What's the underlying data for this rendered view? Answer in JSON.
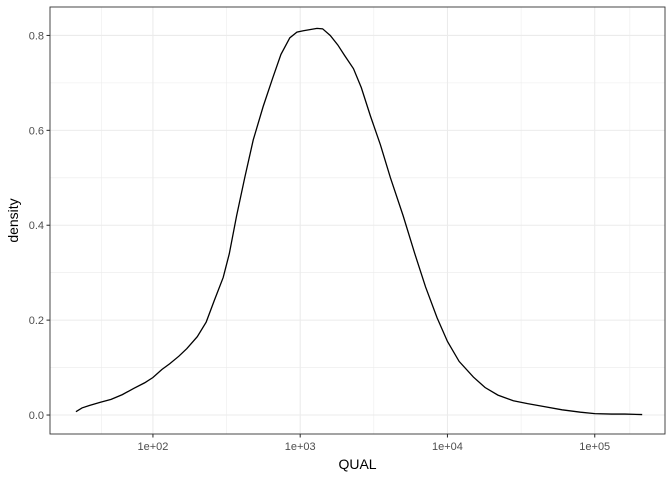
{
  "chart_data": {
    "type": "area",
    "title": "",
    "xlabel": "QUAL",
    "ylabel": "density",
    "x_scale": "log10",
    "xlim": [
      20,
      300000
    ],
    "ylim": [
      -0.04,
      0.86
    ],
    "x_ticks": [
      {
        "value": 100,
        "label": "1e+02"
      },
      {
        "value": 1000,
        "label": "1e+03"
      },
      {
        "value": 10000,
        "label": "1e+04"
      },
      {
        "value": 100000,
        "label": "1e+05"
      }
    ],
    "y_ticks": [
      {
        "value": 0.0,
        "label": "0.0"
      },
      {
        "value": 0.2,
        "label": "0.2"
      },
      {
        "value": 0.4,
        "label": "0.4"
      },
      {
        "value": 0.6,
        "label": "0.6"
      },
      {
        "value": 0.8,
        "label": "0.8"
      }
    ],
    "grid": true,
    "line_color": "#000000",
    "grid_color": "#ebebeb",
    "series": [
      {
        "points": [
          [
            30,
            0.007
          ],
          [
            33,
            0.015
          ],
          [
            37,
            0.02
          ],
          [
            44,
            0.027
          ],
          [
            52,
            0.033
          ],
          [
            62,
            0.043
          ],
          [
            74,
            0.056
          ],
          [
            88,
            0.068
          ],
          [
            100,
            0.079
          ],
          [
            115,
            0.096
          ],
          [
            130,
            0.108
          ],
          [
            150,
            0.124
          ],
          [
            170,
            0.14
          ],
          [
            200,
            0.165
          ],
          [
            230,
            0.196
          ],
          [
            260,
            0.24
          ],
          [
            300,
            0.29
          ],
          [
            330,
            0.34
          ],
          [
            370,
            0.42
          ],
          [
            420,
            0.5
          ],
          [
            480,
            0.58
          ],
          [
            560,
            0.65
          ],
          [
            650,
            0.71
          ],
          [
            740,
            0.76
          ],
          [
            850,
            0.795
          ],
          [
            950,
            0.807
          ],
          [
            1050,
            0.81
          ],
          [
            1150,
            0.812
          ],
          [
            1300,
            0.815
          ],
          [
            1420,
            0.814
          ],
          [
            1600,
            0.8
          ],
          [
            1800,
            0.78
          ],
          [
            2000,
            0.758
          ],
          [
            2300,
            0.73
          ],
          [
            2600,
            0.69
          ],
          [
            3000,
            0.63
          ],
          [
            3500,
            0.57
          ],
          [
            4100,
            0.5
          ],
          [
            5000,
            0.42
          ],
          [
            6000,
            0.34
          ],
          [
            7100,
            0.27
          ],
          [
            8500,
            0.205
          ],
          [
            10000,
            0.155
          ],
          [
            12000,
            0.113
          ],
          [
            15000,
            0.08
          ],
          [
            18000,
            0.058
          ],
          [
            22000,
            0.042
          ],
          [
            28000,
            0.03
          ],
          [
            35000,
            0.024
          ],
          [
            45000,
            0.018
          ],
          [
            60000,
            0.011
          ],
          [
            80000,
            0.006
          ],
          [
            100000,
            0.003
          ],
          [
            130000,
            0.002
          ],
          [
            160000,
            0.002
          ],
          [
            210000,
            0.001
          ]
        ]
      }
    ]
  }
}
